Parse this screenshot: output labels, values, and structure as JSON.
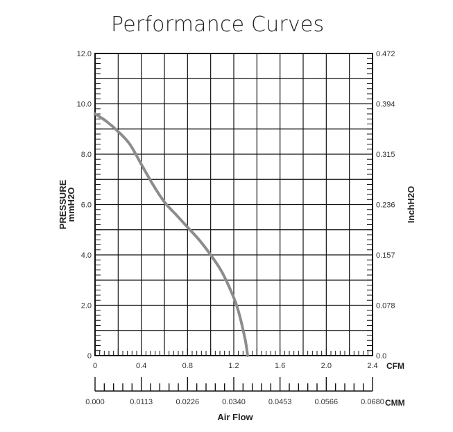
{
  "title": "Performance Curves",
  "chart_data": {
    "type": "line",
    "title": "Performance Curves",
    "xlabel": "Air Flow",
    "x_unit_primary": "CFM",
    "x_unit_secondary": "CMM",
    "ylabel_left": [
      "PRESSURE",
      "mmH2O"
    ],
    "ylabel_right": "InchH2O",
    "xlim": [
      0,
      2.4
    ],
    "ylim": [
      0,
      12
    ],
    "x_ticks": [
      "0",
      "0.4",
      "0.8",
      "1.2",
      "1.6",
      "2.0",
      "2.4"
    ],
    "x_ticks_secondary": [
      "0.000",
      "0.0113",
      "0.0226",
      "0.0340",
      "0.0453",
      "0.0566",
      "0.0680"
    ],
    "y_ticks_left": [
      "0",
      "2.0",
      "4.0",
      "6.0",
      "8.0",
      "10.0",
      "12.0"
    ],
    "y_ticks_right": [
      "0.0",
      "0.078",
      "0.157",
      "0.236",
      "0.315",
      "0.394",
      "0.472"
    ],
    "grid": true,
    "series": [
      {
        "color": "#8c8c8c",
        "x": [
          0.0,
          0.1,
          0.2,
          0.3,
          0.4,
          0.5,
          0.6,
          0.7,
          0.8,
          0.9,
          1.0,
          1.1,
          1.2,
          1.25,
          1.3,
          1.32
        ],
        "y": [
          9.6,
          9.3,
          8.9,
          8.4,
          7.6,
          6.8,
          6.1,
          5.6,
          5.1,
          4.6,
          4.0,
          3.3,
          2.3,
          1.6,
          0.6,
          0.0
        ]
      }
    ]
  }
}
